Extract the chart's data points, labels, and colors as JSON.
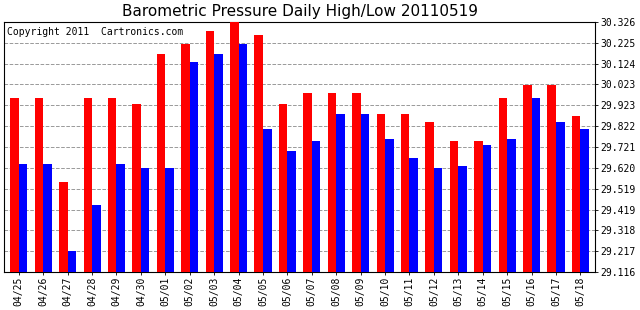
{
  "title": "Barometric Pressure Daily High/Low 20110519",
  "copyright": "Copyright 2011  Cartronics.com",
  "dates": [
    "04/25",
    "04/26",
    "04/27",
    "04/28",
    "04/29",
    "04/30",
    "05/01",
    "05/02",
    "05/03",
    "05/04",
    "05/05",
    "05/06",
    "05/07",
    "05/08",
    "05/09",
    "05/10",
    "05/11",
    "05/12",
    "05/13",
    "05/14",
    "05/15",
    "05/16",
    "05/17",
    "05/18"
  ],
  "highs": [
    29.96,
    29.96,
    29.55,
    29.96,
    29.96,
    29.93,
    30.17,
    30.22,
    30.28,
    30.33,
    30.26,
    29.93,
    29.98,
    29.98,
    29.98,
    29.88,
    29.88,
    29.84,
    29.75,
    29.75,
    29.96,
    30.02,
    30.02,
    29.87
  ],
  "lows": [
    29.64,
    29.64,
    29.22,
    29.44,
    29.64,
    29.62,
    29.62,
    30.13,
    30.17,
    30.22,
    29.81,
    29.7,
    29.75,
    29.88,
    29.88,
    29.76,
    29.67,
    29.62,
    29.63,
    29.73,
    29.76,
    29.96,
    29.84,
    29.81
  ],
  "ylim_min": 29.116,
  "ylim_max": 30.326,
  "yticks": [
    29.116,
    29.217,
    29.318,
    29.419,
    29.519,
    29.62,
    29.721,
    29.822,
    29.923,
    30.023,
    30.124,
    30.225,
    30.326
  ],
  "ytick_labels": [
    "29.116",
    "29.217",
    "29.318",
    "29.419",
    "29.519",
    "29.620",
    "29.721",
    "29.822",
    "29.923",
    "30.023",
    "30.124",
    "30.225",
    "30.326"
  ],
  "high_color": "#ff0000",
  "low_color": "#0000ff",
  "background_color": "#ffffff",
  "grid_color": "#999999",
  "title_fontsize": 11,
  "copyright_fontsize": 7,
  "bar_width": 0.35
}
